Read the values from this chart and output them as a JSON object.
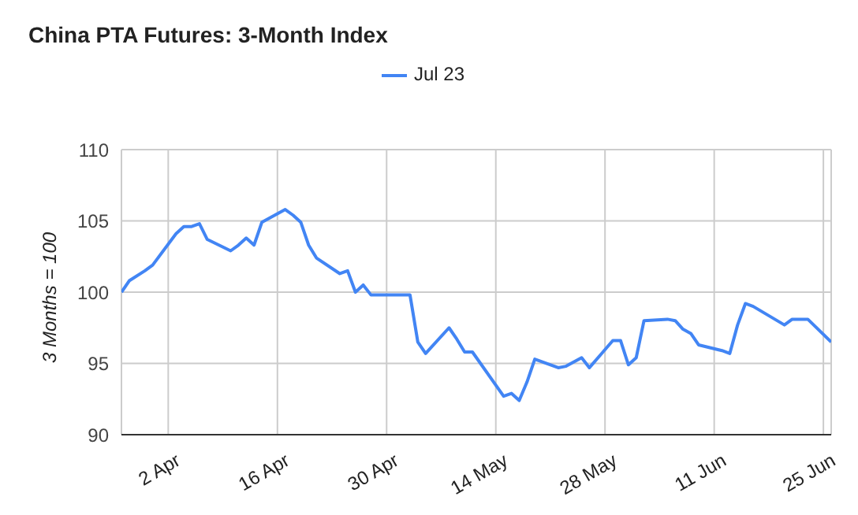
{
  "chart_data": {
    "type": "line",
    "title": "China PTA Futures: 3-Month Index",
    "ylabel": "3 Months = 100",
    "x": [
      "--03-27",
      "--03-28",
      "--03-30",
      "--03-31",
      "--04-03",
      "--04-04",
      "--04-05",
      "--04-06",
      "--04-07",
      "--04-10",
      "--04-11",
      "--04-12",
      "--04-13",
      "--04-14",
      "--04-17",
      "--04-18",
      "--04-19",
      "--04-20",
      "--04-21",
      "--04-24",
      "--04-25",
      "--04-26",
      "--04-27",
      "--04-28",
      "--05-03",
      "--05-04",
      "--05-05",
      "--05-08",
      "--05-09",
      "--05-10",
      "--05-11",
      "--05-15",
      "--05-16",
      "--05-17",
      "--05-18",
      "--05-19",
      "--05-22",
      "--05-23",
      "--05-25",
      "--05-26",
      "--05-29",
      "--05-30",
      "--05-31",
      "--06-01",
      "--06-02",
      "--06-05",
      "--06-06",
      "--06-07",
      "--06-08",
      "--06-09",
      "--06-12",
      "--06-13",
      "--06-14",
      "--06-15",
      "--06-16",
      "--06-20",
      "--06-21",
      "--06-23",
      "--06-26"
    ],
    "series": [
      {
        "name": "Jul 23",
        "color": "#4285f4",
        "values": [
          100,
          100.8,
          101.5,
          101.9,
          104.1,
          104.6,
          104.6,
          104.8,
          103.7,
          102.9,
          103.3,
          103.8,
          103.3,
          104.9,
          105.8,
          105.4,
          104.9,
          103.3,
          102.4,
          101.3,
          101.5,
          100,
          100.5,
          99.8,
          99.8,
          96.5,
          95.7,
          97.5,
          96.7,
          95.8,
          95.8,
          92.7,
          92.9,
          92.4,
          93.7,
          95.3,
          94.7,
          94.8,
          95.4,
          94.7,
          96.6,
          96.6,
          94.9,
          95.4,
          98,
          98.1,
          98,
          97.4,
          97.1,
          96.3,
          95.9,
          95.7,
          97.7,
          99.2,
          99,
          97.7,
          98.1,
          98.1,
          96.5
        ]
      }
    ],
    "xlim": [
      "--03-27",
      "--06-26"
    ],
    "xticks": [
      {
        "value": "--04-02",
        "label": "2 Apr"
      },
      {
        "value": "--04-16",
        "label": "16 Apr"
      },
      {
        "value": "--04-30",
        "label": "30 Apr"
      },
      {
        "value": "--05-14",
        "label": "14 May"
      },
      {
        "value": "--05-28",
        "label": "28 May"
      },
      {
        "value": "--06-11",
        "label": "11 Jun"
      },
      {
        "value": "--06-25",
        "label": "25 Jun"
      }
    ],
    "ylim": [
      90,
      110
    ],
    "yticks": [
      90,
      95,
      100,
      105,
      110
    ],
    "grid": true,
    "legend": "top",
    "marker": "none",
    "line_style": "solid"
  }
}
